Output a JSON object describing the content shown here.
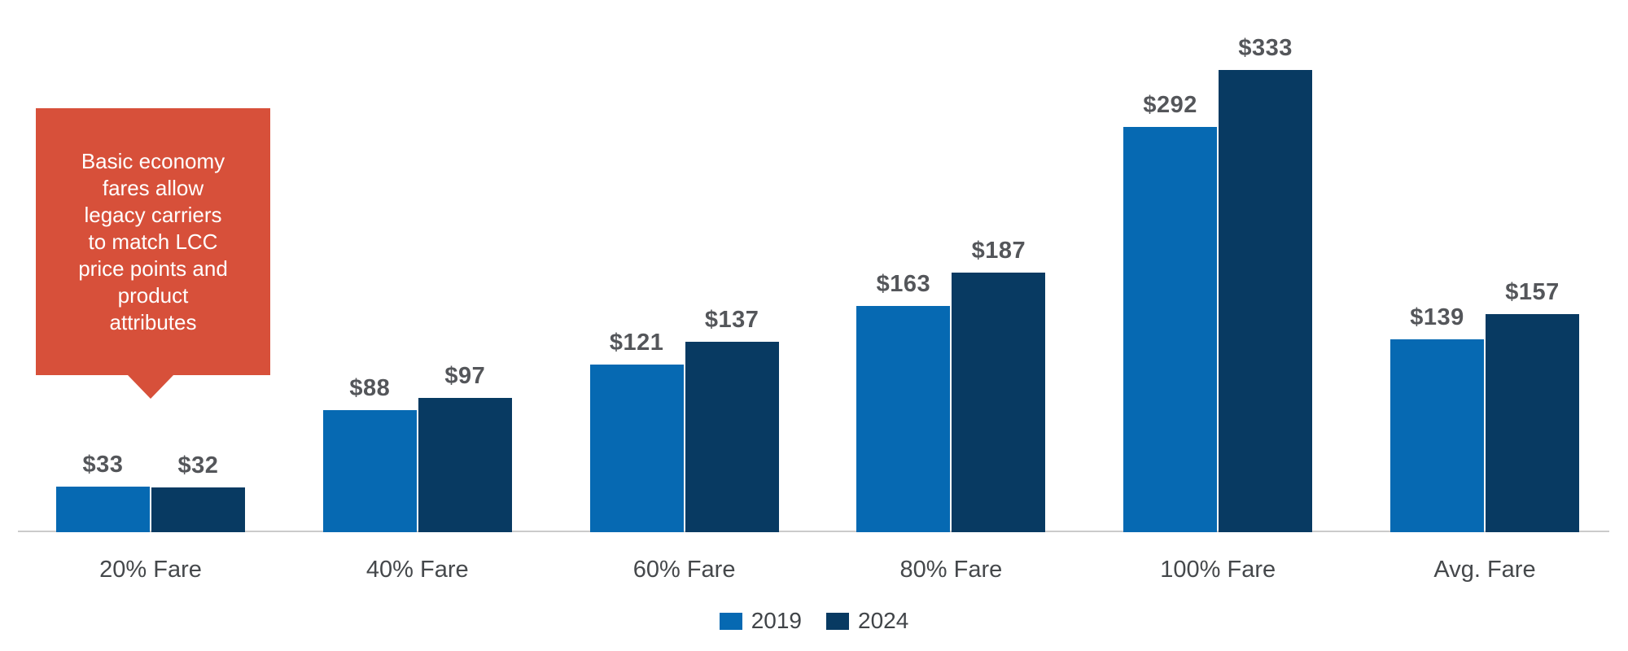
{
  "chart_data": {
    "type": "bar",
    "categories": [
      "20% Fare",
      "40% Fare",
      "60% Fare",
      "80% Fare",
      "100% Fare",
      "Avg. Fare"
    ],
    "series": [
      {
        "name": "2019",
        "color": "#0669B2",
        "values": [
          33,
          88,
          121,
          163,
          292,
          139
        ]
      },
      {
        "name": "2024",
        "color": "#083A62",
        "values": [
          32,
          97,
          137,
          187,
          333,
          157
        ]
      }
    ],
    "value_prefix": "$",
    "data_labels": {
      "2019": [
        "$33",
        "$88",
        "$121",
        "$163",
        "$292",
        "$139"
      ],
      "2024": [
        "$32",
        "$97",
        "$137",
        "$187",
        "$333",
        "$157"
      ]
    },
    "title": "",
    "xlabel": "",
    "ylabel": "",
    "ylim": [
      0,
      350
    ],
    "grid": false,
    "axis_line_color": "#cbcbcb",
    "legend_position": "bottom",
    "legend_entries": [
      "2019",
      "2024"
    ],
    "annotation": {
      "text": "Basic economy\nfares allow\nlegacy carriers\nto match LCC\nprice points and\nproduct\nattributes",
      "background_color": "#D7503A",
      "text_color": "#FFFFFF",
      "points_to_category": "20% Fare"
    },
    "value_label_color": "#54565a",
    "category_label_color": "#45484b"
  }
}
